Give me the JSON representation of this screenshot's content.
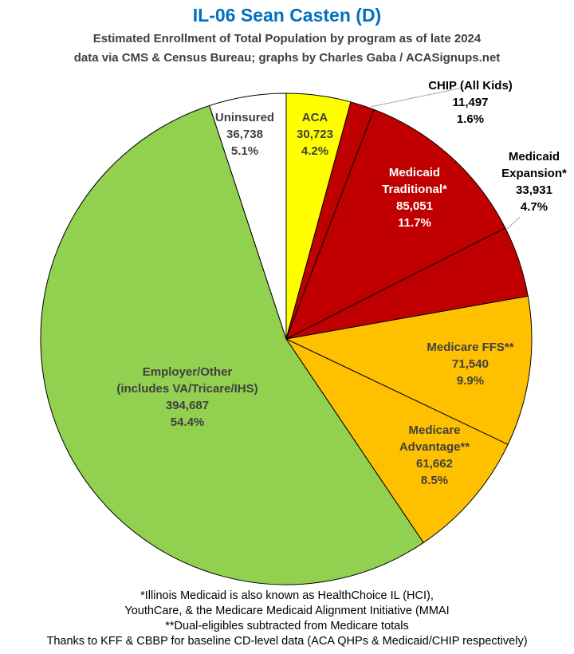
{
  "chart_data": {
    "type": "pie",
    "title": "IL-06 Sean Casten (D)",
    "subtitle_lines": [
      "Estimated Enrollment of Total Population by program as of late 2024",
      "data via CMS & Census Bureau; graphs by Charles Gaba / ACASignups.net"
    ],
    "start_angle": "12 o'clock, clockwise",
    "slices": [
      {
        "name": "ACA",
        "value": 30723,
        "percent": 4.2,
        "color": "#FFFF00",
        "label_lines": [
          "ACA",
          "30,723",
          "4.2%"
        ]
      },
      {
        "name": "CHIP (All Kids)",
        "value": 11497,
        "percent": 1.6,
        "color": "#C00000",
        "label_lines": [
          "CHIP (All Kids)",
          "11,497",
          "1.6%"
        ]
      },
      {
        "name": "Medicaid Traditional*",
        "value": 85051,
        "percent": 11.7,
        "color": "#C00000",
        "label_lines": [
          "Medicaid",
          "Traditional*",
          "85,051",
          "11.7%"
        ]
      },
      {
        "name": "Medicaid Expansion*",
        "value": 33931,
        "percent": 4.7,
        "color": "#C00000",
        "label_lines": [
          "Medicaid",
          "Expansion*",
          "33,931",
          "4.7%"
        ]
      },
      {
        "name": "Medicare FFS**",
        "value": 71540,
        "percent": 9.9,
        "color": "#FFC000",
        "label_lines": [
          "Medicare FFS**",
          "71,540",
          "9.9%"
        ]
      },
      {
        "name": "Medicare Advantage**",
        "value": 61662,
        "percent": 8.5,
        "color": "#FFC000",
        "label_lines": [
          "Medicare",
          "Advantage**",
          "61,662",
          "8.5%"
        ]
      },
      {
        "name": "Employer/Other (includes VA/Tricare/IHS)",
        "value": 394687,
        "percent": 54.4,
        "color": "#92D050",
        "label_lines": [
          "Employer/Other",
          "(includes VA/Tricare/IHS)",
          "394,687",
          "54.4%"
        ]
      },
      {
        "name": "Uninsured",
        "value": 36738,
        "percent": 5.1,
        "color": "#FFFFFF",
        "label_lines": [
          "Uninsured",
          "36,738",
          "5.1%"
        ]
      }
    ]
  },
  "footnotes": [
    "*Illinois Medicaid is also known as HealthChoice IL (HCI),",
    "YouthCare, & the Medicare Medicaid Alignment Initiative (MMAI",
    "**Dual-eligibles subtracted from Medicare totals",
    "Thanks to KFF & CBBP for baseline CD-level data (ACA QHPs & Medicaid/CHIP respectively)"
  ]
}
